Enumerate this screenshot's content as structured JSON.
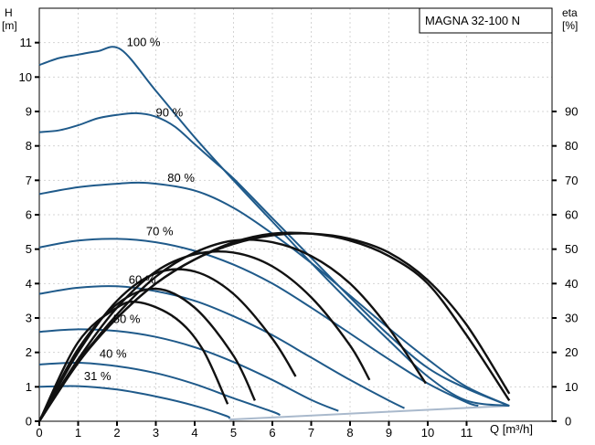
{
  "chart_data": {
    "type": "line",
    "title": "MAGNA 32-100 N",
    "left_axis": {
      "label_top": "H",
      "label_unit": "[m]",
      "ticks": [
        0,
        1,
        2,
        3,
        4,
        5,
        6,
        7,
        8,
        9,
        10,
        11
      ],
      "range": [
        0,
        12
      ]
    },
    "right_axis": {
      "label_top": "eta",
      "label_unit": "[%]",
      "ticks": [
        0,
        10,
        20,
        30,
        40,
        50,
        60,
        70,
        80,
        90
      ],
      "range": [
        0,
        120
      ]
    },
    "x_axis": {
      "label": "Q [m³/h]",
      "ticks": [
        0,
        1,
        2,
        3,
        4,
        5,
        6,
        7,
        8,
        9,
        10,
        11
      ],
      "range": [
        0,
        13.2
      ]
    },
    "grid": true,
    "colors": {
      "head": "#1f5a8a",
      "efficiency": "#111111",
      "limit": "#a9b9cc"
    },
    "head_curves": [
      {
        "label": "100 %",
        "points": [
          [
            0,
            10.35
          ],
          [
            0.5,
            10.55
          ],
          [
            1,
            10.65
          ],
          [
            1.5,
            10.75
          ],
          [
            2.1,
            10.8
          ],
          [
            3,
            9.6
          ],
          [
            4,
            8.25
          ],
          [
            5,
            7.0
          ],
          [
            6,
            5.8
          ],
          [
            7,
            4.6
          ],
          [
            8,
            3.45
          ],
          [
            9,
            2.35
          ],
          [
            10,
            1.3
          ],
          [
            11,
            0.6
          ],
          [
            12.1,
            0.45
          ]
        ]
      },
      {
        "label": "90 %",
        "points": [
          [
            0,
            8.4
          ],
          [
            0.5,
            8.45
          ],
          [
            1,
            8.6
          ],
          [
            1.5,
            8.8
          ],
          [
            2,
            8.9
          ],
          [
            2.5,
            8.95
          ],
          [
            3,
            8.85
          ],
          [
            3.5,
            8.55
          ],
          [
            4,
            8.05
          ],
          [
            4.5,
            7.55
          ],
          [
            5,
            7.05
          ],
          [
            6,
            5.9
          ],
          [
            7,
            4.75
          ],
          [
            8,
            3.6
          ],
          [
            9,
            2.5
          ],
          [
            10,
            1.55
          ],
          [
            11,
            0.95
          ],
          [
            12.1,
            0.45
          ]
        ]
      },
      {
        "label": "80 %",
        "points": [
          [
            0,
            6.6
          ],
          [
            1,
            6.8
          ],
          [
            2,
            6.9
          ],
          [
            2.8,
            6.92
          ],
          [
            4,
            6.7
          ],
          [
            5,
            6.2
          ],
          [
            6,
            5.45
          ],
          [
            7,
            4.6
          ],
          [
            8,
            3.65
          ],
          [
            9,
            2.7
          ],
          [
            10,
            1.8
          ],
          [
            11,
            1.0
          ],
          [
            12.1,
            0.45
          ]
        ]
      },
      {
        "label": "70 %",
        "points": [
          [
            0,
            5.05
          ],
          [
            1,
            5.25
          ],
          [
            2,
            5.3
          ],
          [
            3,
            5.2
          ],
          [
            4,
            4.95
          ],
          [
            5,
            4.55
          ],
          [
            6,
            4.0
          ],
          [
            7,
            3.3
          ],
          [
            8,
            2.55
          ],
          [
            9,
            1.8
          ],
          [
            10,
            1.1
          ],
          [
            11,
            0.55
          ],
          [
            11.3,
            0.45
          ]
        ]
      },
      {
        "label": "60 %",
        "points": [
          [
            0,
            3.7
          ],
          [
            1,
            3.88
          ],
          [
            2,
            3.92
          ],
          [
            3,
            3.78
          ],
          [
            4,
            3.5
          ],
          [
            5,
            3.05
          ],
          [
            6,
            2.5
          ],
          [
            7,
            1.85
          ],
          [
            8,
            1.2
          ],
          [
            9,
            0.6
          ],
          [
            9.4,
            0.38
          ]
        ]
      },
      {
        "label": "50 %",
        "points": [
          [
            0,
            2.6
          ],
          [
            1,
            2.67
          ],
          [
            2,
            2.62
          ],
          [
            3,
            2.45
          ],
          [
            4,
            2.15
          ],
          [
            5,
            1.72
          ],
          [
            6,
            1.2
          ],
          [
            7,
            0.62
          ],
          [
            7.7,
            0.3
          ]
        ]
      },
      {
        "label": "40 %",
        "points": [
          [
            0,
            1.65
          ],
          [
            1,
            1.7
          ],
          [
            2,
            1.6
          ],
          [
            3,
            1.4
          ],
          [
            4,
            1.08
          ],
          [
            5,
            0.67
          ],
          [
            6,
            0.28
          ],
          [
            6.2,
            0.18
          ]
        ]
      },
      {
        "label": "31 %",
        "points": [
          [
            0,
            1.0
          ],
          [
            1,
            1.02
          ],
          [
            2,
            0.92
          ],
          [
            3,
            0.72
          ],
          [
            4,
            0.45
          ],
          [
            4.8,
            0.16
          ],
          [
            4.9,
            0.08
          ]
        ]
      }
    ],
    "efficiency_curves": [
      {
        "points": [
          [
            0,
            0
          ],
          [
            1,
            17
          ],
          [
            2,
            30
          ],
          [
            3,
            40
          ],
          [
            4,
            47
          ],
          [
            5,
            51.5
          ],
          [
            6,
            54
          ],
          [
            7,
            54.5
          ],
          [
            8,
            53
          ],
          [
            9,
            49
          ],
          [
            10,
            41
          ],
          [
            11,
            28
          ],
          [
            12.1,
            8
          ]
        ]
      },
      {
        "points": [
          [
            0,
            0
          ],
          [
            1,
            17.5
          ],
          [
            2,
            30
          ],
          [
            3,
            40
          ],
          [
            4,
            47
          ],
          [
            5,
            52
          ],
          [
            6,
            54.5
          ],
          [
            7,
            54.5
          ],
          [
            8,
            52.5
          ],
          [
            9,
            48
          ],
          [
            10,
            40
          ],
          [
            11,
            25
          ],
          [
            12.1,
            6
          ]
        ]
      },
      {
        "points": [
          [
            0,
            0
          ],
          [
            1,
            17
          ],
          [
            2,
            31
          ],
          [
            3,
            42
          ],
          [
            4,
            49
          ],
          [
            5,
            52.5
          ],
          [
            6,
            52
          ],
          [
            7,
            48
          ],
          [
            8,
            40
          ],
          [
            9,
            27
          ],
          [
            9.95,
            11
          ]
        ]
      },
      {
        "points": [
          [
            0,
            0
          ],
          [
            1,
            18
          ],
          [
            2,
            33
          ],
          [
            3,
            43.5
          ],
          [
            4,
            48.5
          ],
          [
            5,
            49
          ],
          [
            6,
            45
          ],
          [
            7,
            36
          ],
          [
            8,
            22
          ],
          [
            8.5,
            12
          ]
        ]
      },
      {
        "points": [
          [
            0,
            0
          ],
          [
            1,
            20
          ],
          [
            2,
            35
          ],
          [
            3,
            43
          ],
          [
            4,
            43.5
          ],
          [
            5,
            37
          ],
          [
            6,
            24
          ],
          [
            6.6,
            13
          ]
        ]
      },
      {
        "points": [
          [
            0,
            0
          ],
          [
            1,
            21
          ],
          [
            2,
            34
          ],
          [
            3,
            38.5
          ],
          [
            4,
            33
          ],
          [
            5,
            19
          ],
          [
            5.55,
            6
          ]
        ]
      },
      {
        "points": [
          [
            0,
            0
          ],
          [
            1,
            23
          ],
          [
            2,
            33
          ],
          [
            2.6,
            34.5
          ],
          [
            3.5,
            30
          ],
          [
            4.2,
            21
          ],
          [
            4.85,
            5
          ]
        ]
      }
    ],
    "max_flow_line": {
      "points": [
        [
          4.9,
          0.05
        ],
        [
          12.1,
          0.45
        ]
      ]
    }
  }
}
